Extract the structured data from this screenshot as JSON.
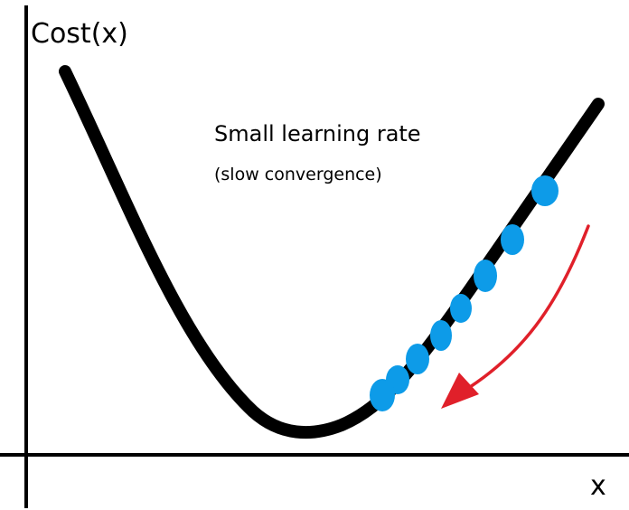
{
  "y_axis_label": "Cost(x)",
  "x_axis_label": "x",
  "title": "Small learning rate",
  "subtitle": "(slow convergence)",
  "colors": {
    "curve": "#000000",
    "axes": "#000000",
    "steps": "#0d9be8",
    "arrow": "#e0202a"
  },
  "step_count": 8,
  "descent_direction": "down the curve toward the minimum"
}
